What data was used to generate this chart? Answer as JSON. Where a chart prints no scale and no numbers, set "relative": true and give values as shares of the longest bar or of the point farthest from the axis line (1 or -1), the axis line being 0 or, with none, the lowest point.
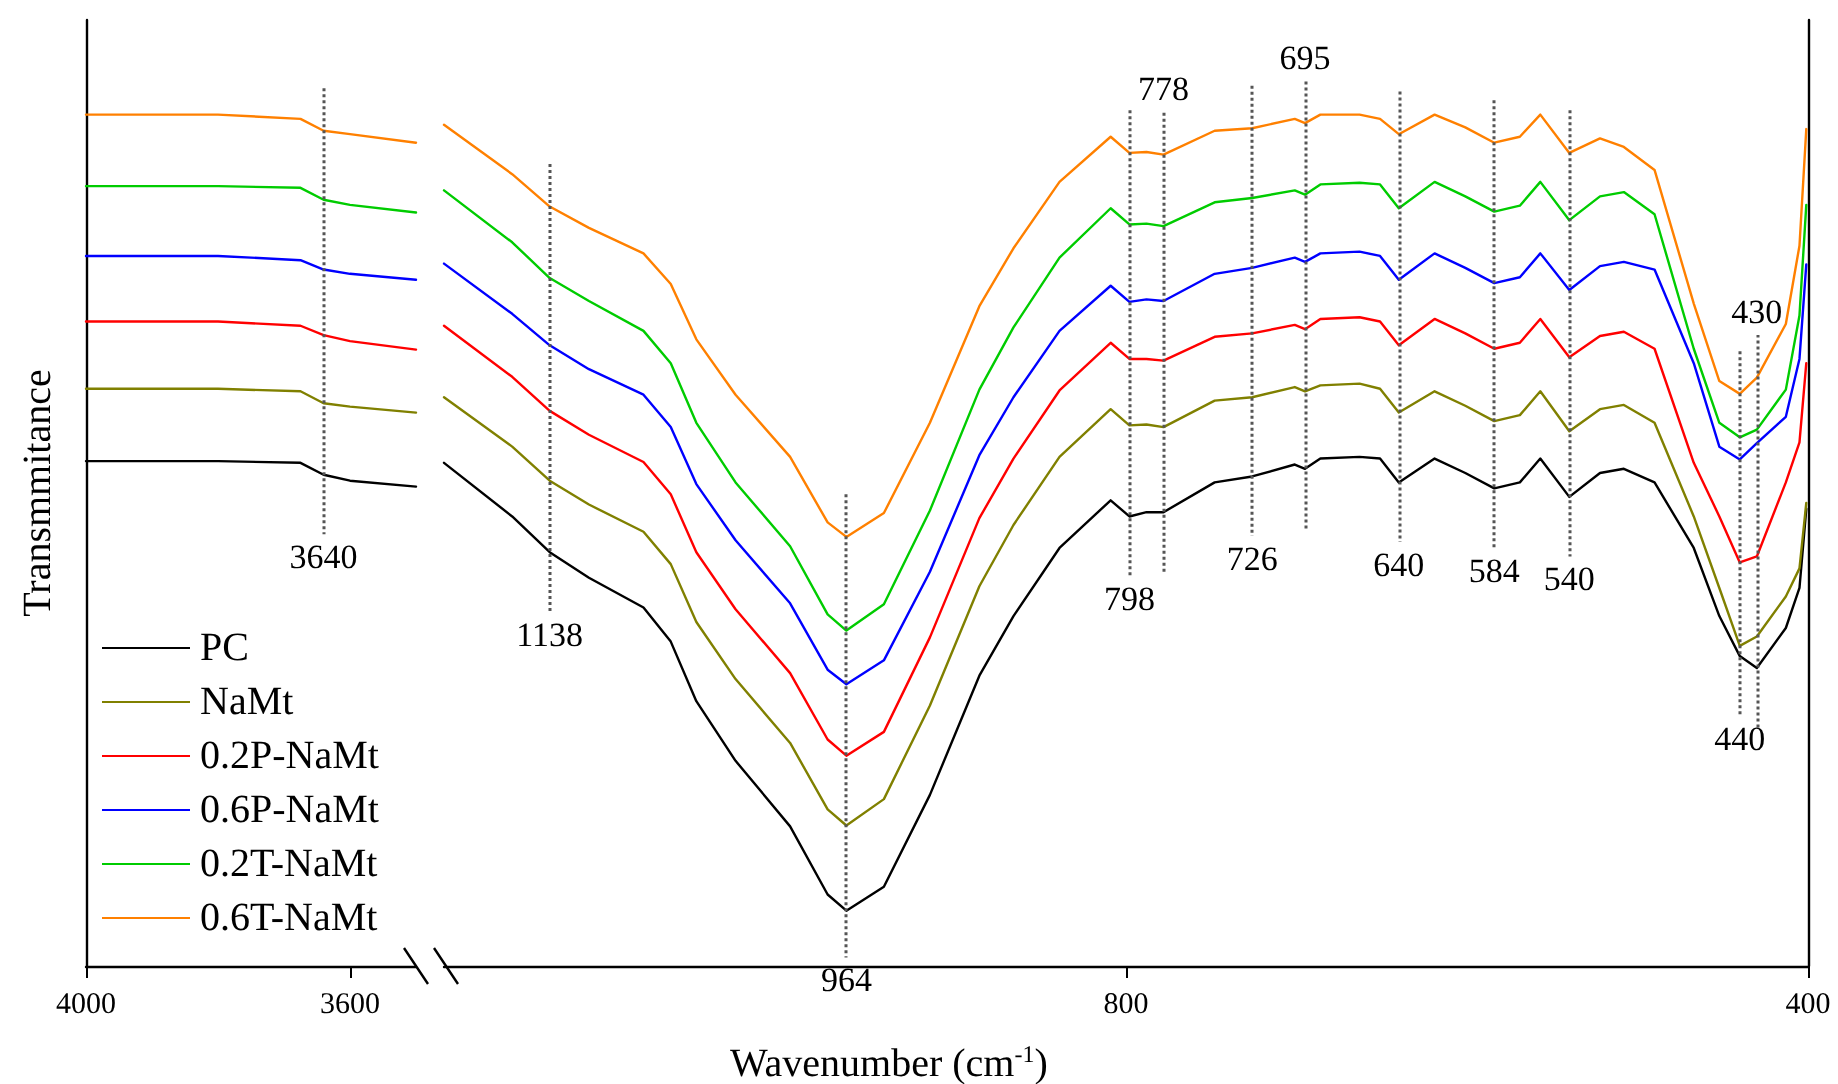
{
  "chart_data": [
    {
      "type": "line",
      "ylabel": "Transmmitance",
      "relative": true,
      "legend": "bottom left",
      "marker": "none",
      "line_style": "solid",
      "xlim": [
        4000,
        3500
      ],
      "xticks": [
        4000,
        3600
      ],
      "x": [
        4000,
        3800,
        3675,
        3640,
        3600,
        3500
      ],
      "series": [
        {
          "name": "PC",
          "color": "#000000",
          "values": [
            0.593,
            0.593,
            0.591,
            0.577,
            0.57,
            0.563
          ]
        },
        {
          "name": "NaMt",
          "color": "#808000",
          "values": [
            0.678,
            0.678,
            0.675,
            0.661,
            0.657,
            0.65
          ]
        },
        {
          "name": "0.2P-NaMt",
          "color": "#ff0000",
          "values": [
            0.757,
            0.757,
            0.752,
            0.741,
            0.734,
            0.724
          ]
        },
        {
          "name": "0.6P-NaMt",
          "color": "#0000ff",
          "values": [
            0.834,
            0.834,
            0.829,
            0.818,
            0.813,
            0.806
          ]
        },
        {
          "name": "0.2T-NaMt",
          "color": "#00cc00",
          "values": [
            0.916,
            0.916,
            0.914,
            0.9,
            0.894,
            0.885
          ]
        },
        {
          "name": "0.6T-NaMt",
          "color": "#ff8000",
          "values": [
            1.0,
            1.0,
            0.995,
            0.981,
            0.977,
            0.967
          ]
        }
      ],
      "ref_lines": [
        {
          "axis": "x",
          "value": 3640,
          "label": "3640",
          "color": "#555555",
          "line_style": "dotted"
        }
      ]
    },
    {
      "type": "line",
      "xlabel": "Wavenumber (cm$^{-1}$)",
      "relative": true,
      "marker": "none",
      "line_style": "solid",
      "xlim": [
        1200,
        400
      ],
      "xticks": [
        800,
        400
      ],
      "x": [
        1200,
        1160,
        1138,
        1115,
        1083,
        1067,
        1052,
        1029,
        997,
        975,
        964,
        942,
        915,
        886,
        866,
        839,
        809,
        798,
        788,
        778,
        748,
        726,
        701,
        695,
        686,
        663,
        651,
        640,
        619,
        601,
        584,
        569,
        557,
        540,
        522,
        508,
        490,
        467,
        452,
        440,
        430,
        413,
        405,
        401
      ],
      "series": [
        {
          "color": "#000000",
          "values": [
            0.591,
            0.528,
            0.486,
            0.456,
            0.421,
            0.381,
            0.311,
            0.241,
            0.164,
            0.084,
            0.065,
            0.093,
            0.201,
            0.341,
            0.411,
            0.491,
            0.547,
            0.528,
            0.533,
            0.533,
            0.568,
            0.575,
            0.589,
            0.584,
            0.596,
            0.598,
            0.596,
            0.568,
            0.596,
            0.579,
            0.561,
            0.568,
            0.596,
            0.551,
            0.579,
            0.584,
            0.568,
            0.491,
            0.411,
            0.364,
            0.35,
            0.397,
            0.444,
            0.537
          ]
        },
        {
          "color": "#808000",
          "values": [
            0.668,
            0.61,
            0.57,
            0.542,
            0.51,
            0.472,
            0.404,
            0.337,
            0.262,
            0.184,
            0.165,
            0.196,
            0.306,
            0.446,
            0.518,
            0.598,
            0.654,
            0.635,
            0.636,
            0.633,
            0.664,
            0.668,
            0.68,
            0.675,
            0.682,
            0.684,
            0.678,
            0.65,
            0.675,
            0.658,
            0.64,
            0.647,
            0.675,
            0.628,
            0.654,
            0.659,
            0.638,
            0.528,
            0.444,
            0.376,
            0.387,
            0.434,
            0.467,
            0.544
          ]
        },
        {
          "color": "#ff0000",
          "values": [
            0.752,
            0.692,
            0.652,
            0.624,
            0.592,
            0.554,
            0.486,
            0.419,
            0.344,
            0.266,
            0.247,
            0.275,
            0.386,
            0.526,
            0.596,
            0.676,
            0.732,
            0.713,
            0.713,
            0.711,
            0.739,
            0.743,
            0.753,
            0.748,
            0.76,
            0.762,
            0.757,
            0.729,
            0.76,
            0.743,
            0.725,
            0.732,
            0.76,
            0.715,
            0.74,
            0.745,
            0.725,
            0.591,
            0.528,
            0.474,
            0.481,
            0.568,
            0.615,
            0.708
          ]
        },
        {
          "color": "#0000ff",
          "values": [
            0.825,
            0.766,
            0.729,
            0.701,
            0.671,
            0.633,
            0.566,
            0.5,
            0.426,
            0.348,
            0.331,
            0.359,
            0.463,
            0.6,
            0.668,
            0.746,
            0.799,
            0.78,
            0.783,
            0.781,
            0.813,
            0.82,
            0.832,
            0.827,
            0.837,
            0.839,
            0.834,
            0.806,
            0.837,
            0.82,
            0.802,
            0.809,
            0.837,
            0.794,
            0.822,
            0.827,
            0.818,
            0.708,
            0.61,
            0.595,
            0.614,
            0.645,
            0.713,
            0.824
          ]
        },
        {
          "color": "#00cc00",
          "values": [
            0.911,
            0.85,
            0.808,
            0.781,
            0.746,
            0.708,
            0.638,
            0.568,
            0.493,
            0.413,
            0.394,
            0.425,
            0.535,
            0.677,
            0.75,
            0.832,
            0.89,
            0.871,
            0.872,
            0.869,
            0.897,
            0.902,
            0.911,
            0.906,
            0.918,
            0.92,
            0.918,
            0.89,
            0.921,
            0.904,
            0.886,
            0.893,
            0.921,
            0.876,
            0.904,
            0.909,
            0.883,
            0.725,
            0.638,
            0.621,
            0.63,
            0.677,
            0.764,
            0.894
          ]
        },
        {
          "color": "#ff8000",
          "values": [
            0.988,
            0.93,
            0.892,
            0.867,
            0.837,
            0.801,
            0.736,
            0.671,
            0.598,
            0.521,
            0.504,
            0.532,
            0.638,
            0.775,
            0.843,
            0.921,
            0.974,
            0.955,
            0.956,
            0.953,
            0.981,
            0.984,
            0.995,
            0.99,
            1.0,
            1.0,
            0.995,
            0.977,
            1.0,
            0.985,
            0.967,
            0.974,
            1.0,
            0.955,
            0.972,
            0.962,
            0.935,
            0.778,
            0.687,
            0.672,
            0.691,
            0.754,
            0.846,
            0.983
          ]
        }
      ],
      "ref_lines": [
        {
          "axis": "x",
          "value": 1138,
          "label": "1138",
          "color": "#555555",
          "line_style": "dotted"
        },
        {
          "axis": "x",
          "value": 964,
          "label": "964",
          "color": "#555555",
          "line_style": "dotted"
        },
        {
          "axis": "x",
          "value": 798,
          "label": "798",
          "color": "#555555",
          "line_style": "dotted"
        },
        {
          "axis": "x",
          "value": 778,
          "label": "778",
          "color": "#555555",
          "line_style": "dotted"
        },
        {
          "axis": "x",
          "value": 726,
          "label": "726",
          "color": "#555555",
          "line_style": "dotted"
        },
        {
          "axis": "x",
          "value": 695,
          "label": "695",
          "color": "#555555",
          "line_style": "dotted"
        },
        {
          "axis": "x",
          "value": 640,
          "label": "640",
          "color": "#555555",
          "line_style": "dotted"
        },
        {
          "axis": "x",
          "value": 584,
          "label": "584",
          "color": "#555555",
          "line_style": "dotted"
        },
        {
          "axis": "x",
          "value": 540,
          "label": "540",
          "color": "#555555",
          "line_style": "dotted"
        },
        {
          "axis": "x",
          "value": 440,
          "label": "440",
          "color": "#555555",
          "line_style": "dotted"
        },
        {
          "axis": "x",
          "value": 430,
          "label": "430",
          "color": "#555555",
          "line_style": "dotted"
        }
      ]
    }
  ]
}
